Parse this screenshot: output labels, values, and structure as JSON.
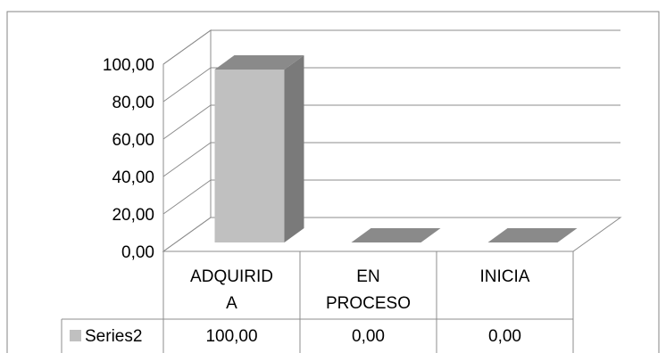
{
  "chart_data": {
    "type": "bar",
    "style": "3d-column-with-data-table",
    "categories": [
      "ADQUIRIDA",
      "EN PROCESO",
      "INICIA"
    ],
    "category_label_lines": [
      [
        "ADQUIRID",
        "A"
      ],
      [
        "EN",
        "PROCESO"
      ],
      [
        "INICIA"
      ]
    ],
    "series": [
      {
        "name": "Series2",
        "values": [
          100.0,
          0.0,
          0.0
        ],
        "value_labels": [
          "100,00",
          "0,00",
          "0,00"
        ]
      }
    ],
    "ylim": [
      0,
      100
    ],
    "y_ticks": [
      0,
      20,
      40,
      60,
      80,
      100
    ],
    "y_tick_labels": [
      "0,00",
      "20,00",
      "40,00",
      "60,00",
      "80,00",
      "100,00"
    ],
    "grid": true,
    "legend": "data-table",
    "colors": {
      "bar_front": "#c0c0c0",
      "bar_top": "#8a8a8a",
      "bar_side": "#7a7a7a",
      "grid": "#8c8c8c",
      "legend_key": "#c0c0c0"
    }
  }
}
